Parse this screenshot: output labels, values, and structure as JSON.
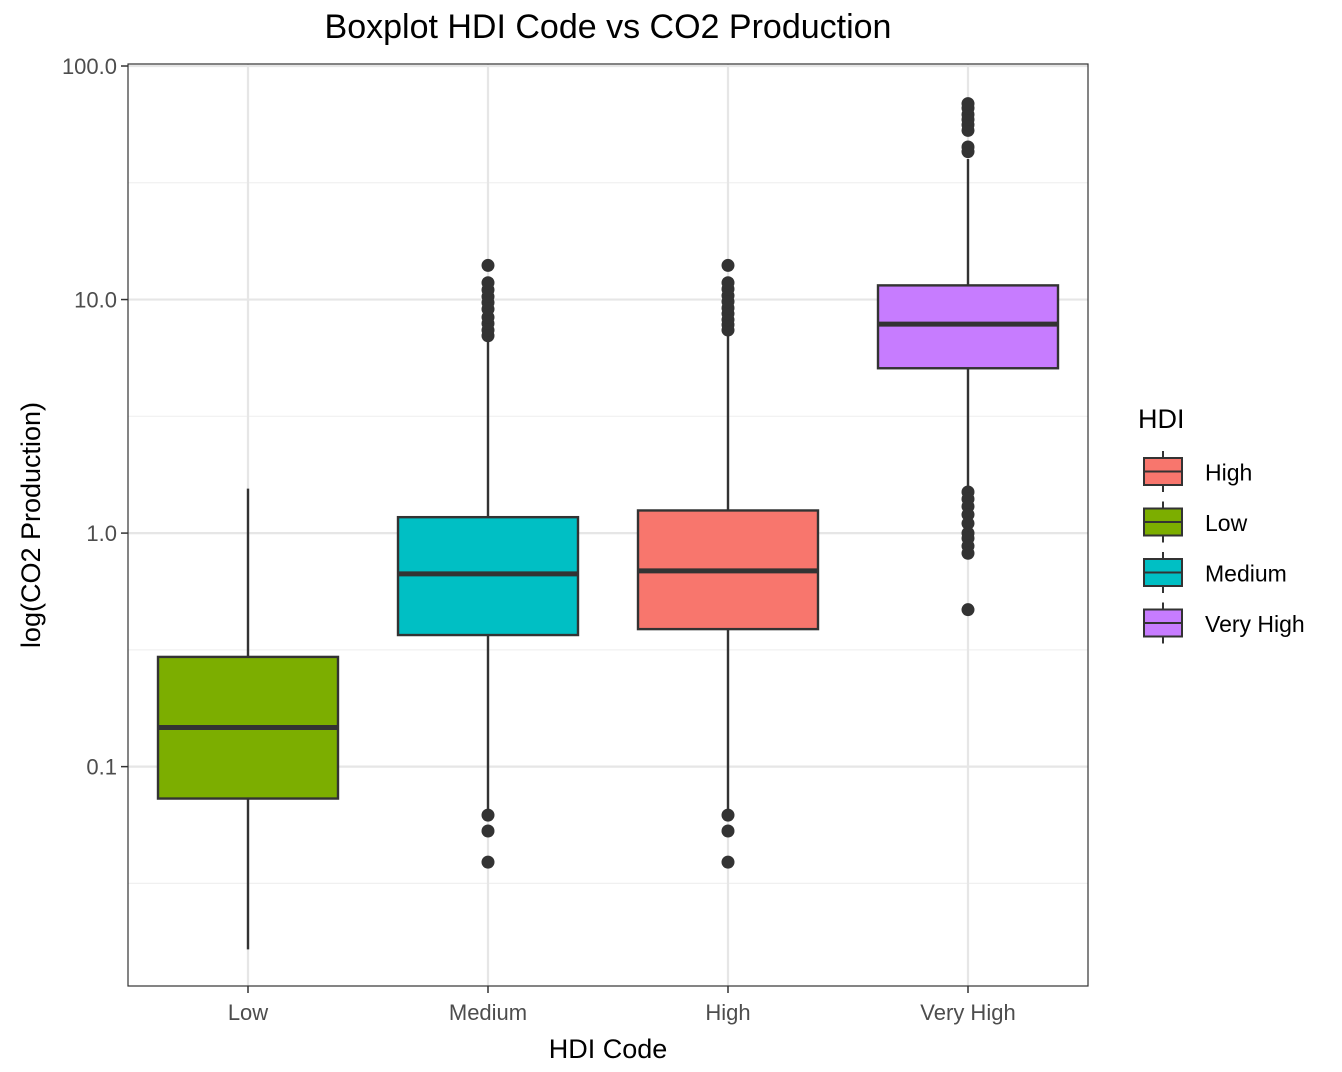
{
  "chart_data": {
    "type": "boxplot",
    "title": "Boxplot HDI Code vs CO2 Production",
    "xlabel": "HDI Code",
    "ylabel": "log(CO2 Production)",
    "y_scale": "log10",
    "ylim": [
      0.0115,
      102
    ],
    "y_ticks": [
      0.1,
      1,
      10,
      100
    ],
    "y_tick_labels": [
      "0.1",
      "1.0",
      "10.0",
      "100.0"
    ],
    "grid": true,
    "legend": {
      "title": "HDI",
      "placement": "right",
      "entries": [
        {
          "label": "High",
          "color": "#F8766D"
        },
        {
          "label": "Low",
          "color": "#7CAE00"
        },
        {
          "label": "Medium",
          "color": "#00BFC4"
        },
        {
          "label": "Very High",
          "color": "#C77CFF"
        }
      ]
    },
    "categories": [
      "Low",
      "Medium",
      "High",
      "Very High"
    ],
    "boxes": [
      {
        "category": "Low",
        "color": "#7CAE00",
        "whisker_low": 0.0165,
        "q1": 0.073,
        "median": 0.147,
        "q3": 0.295,
        "whisker_high": 1.55,
        "outliers": []
      },
      {
        "category": "Medium",
        "color": "#00BFC4",
        "whisker_low": 0.064,
        "q1": 0.366,
        "median": 0.669,
        "q3": 1.17,
        "whisker_high": 6.7,
        "outliers": [
          7.0,
          7.4,
          7.9,
          8.4,
          9.1,
          9.7,
          10.3,
          11.0,
          11.8,
          14.0,
          0.062,
          0.053,
          0.039
        ]
      },
      {
        "category": "High",
        "color": "#F8766D",
        "whisker_low": 0.064,
        "q1": 0.388,
        "median": 0.689,
        "q3": 1.25,
        "whisker_high": 7.1,
        "outliers": [
          7.4,
          7.8,
          8.2,
          8.7,
          9.2,
          9.8,
          10.4,
          11.1,
          11.8,
          14.0,
          0.062,
          0.053,
          0.039
        ]
      },
      {
        "category": "Very High",
        "color": "#C77CFF",
        "whisker_low": 0.82,
        "q1": 5.08,
        "median": 7.85,
        "q3": 11.5,
        "whisker_high": 40.0,
        "outliers": [
          43.0,
          45.0,
          53.0,
          56.0,
          59.0,
          62.0,
          66.0,
          69.0,
          1.5,
          1.4,
          1.3,
          1.2,
          1.1,
          1.0,
          0.95,
          0.88,
          0.82,
          0.47
        ]
      }
    ]
  }
}
